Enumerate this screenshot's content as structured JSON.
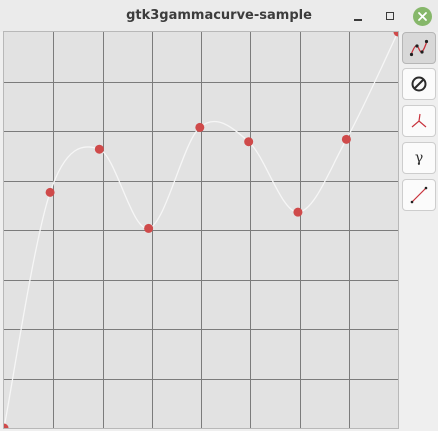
{
  "window": {
    "title": "gtk3gammacurve-sample"
  },
  "toolbar": {
    "buttons": [
      {
        "id": "spline",
        "icon": "spline-curve-icon",
        "active": true
      },
      {
        "id": "reset",
        "icon": "reset-icon",
        "active": false
      },
      {
        "id": "free",
        "icon": "free-curve-icon",
        "active": false
      },
      {
        "id": "gamma",
        "icon": "gamma-icon",
        "label": "γ",
        "active": false
      },
      {
        "id": "linear",
        "icon": "linear-icon",
        "active": false
      }
    ]
  },
  "curve": {
    "colors": {
      "grid": "#7b7b7b",
      "curve": "#f6f6f6",
      "point": "#cf4a4a",
      "background": "#e2e2e2"
    },
    "points": [
      {
        "x": 0,
        "y": 0
      },
      {
        "x": 0.117,
        "y": 0.595
      },
      {
        "x": 0.242,
        "y": 0.704
      },
      {
        "x": 0.367,
        "y": 0.504
      },
      {
        "x": 0.497,
        "y": 0.759
      },
      {
        "x": 0.621,
        "y": 0.723
      },
      {
        "x": 0.746,
        "y": 0.545
      },
      {
        "x": 0.869,
        "y": 0.729
      },
      {
        "x": 1,
        "y": 1
      }
    ]
  }
}
